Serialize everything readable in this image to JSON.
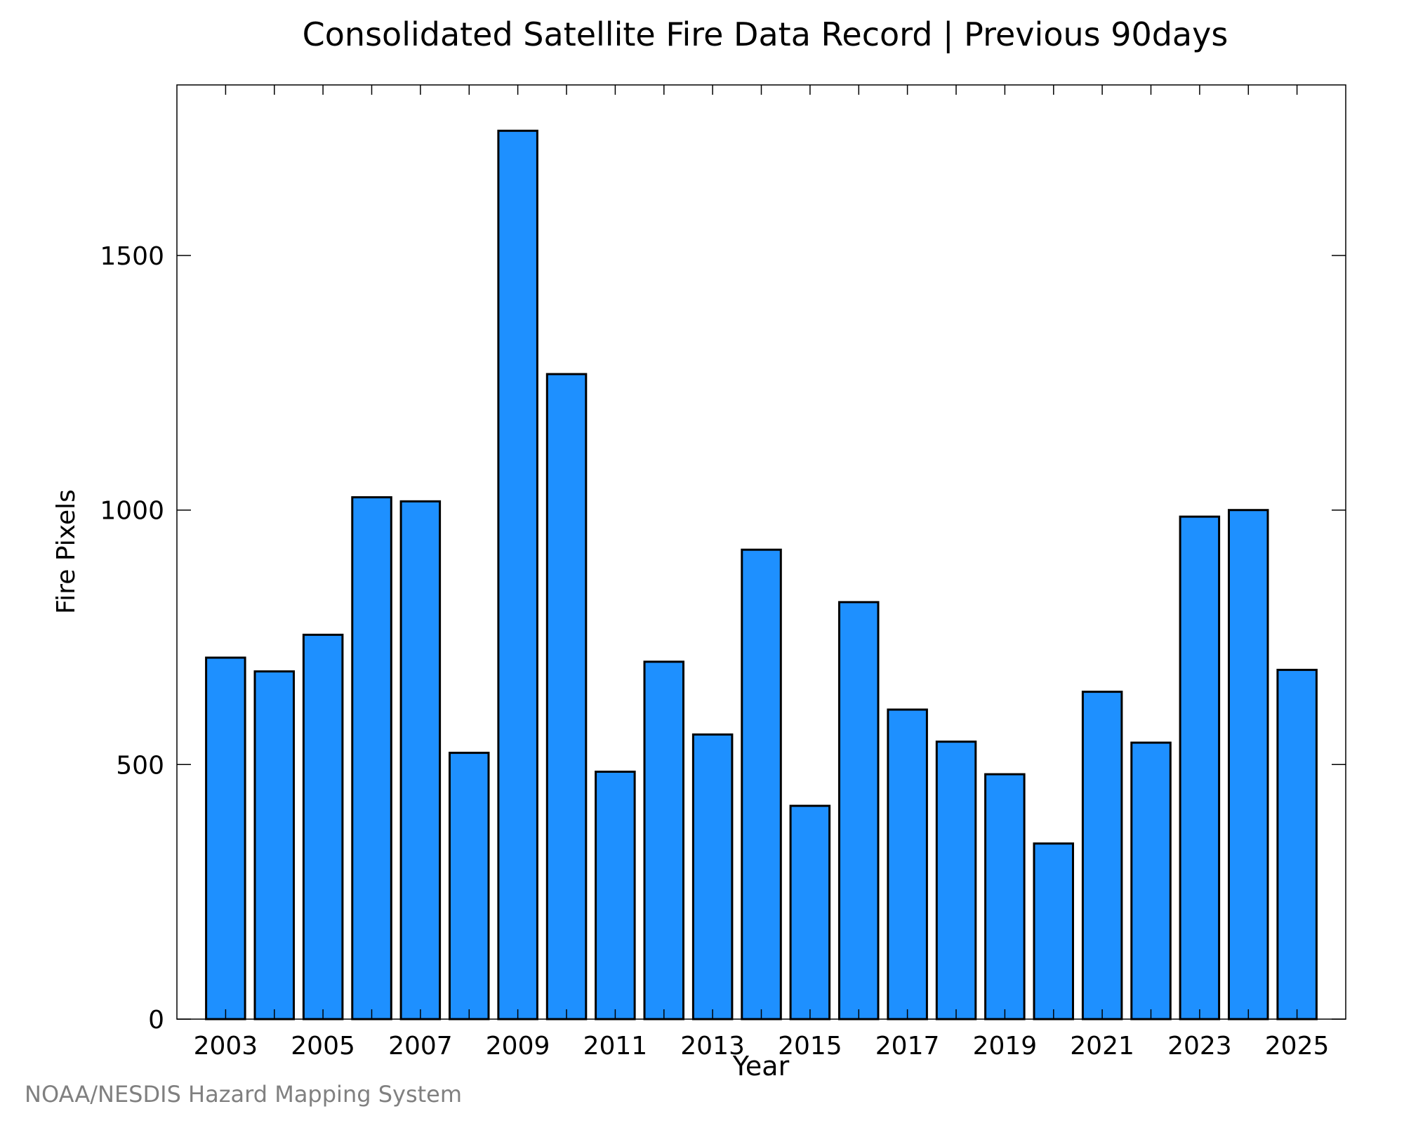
{
  "chart_data": {
    "type": "bar",
    "title": "Consolidated Satellite Fire Data Record | Previous 90days",
    "xlabel": "Year",
    "ylabel": "Fire Pixels",
    "categories": [
      "2003",
      "2004",
      "2005",
      "2006",
      "2007",
      "2008",
      "2009",
      "2010",
      "2011",
      "2012",
      "2013",
      "2014",
      "2015",
      "2016",
      "2017",
      "2018",
      "2019",
      "2020",
      "2021",
      "2022",
      "2023",
      "2024",
      "2025"
    ],
    "values": [
      710,
      683,
      755,
      1025,
      1017,
      523,
      1745,
      1267,
      486,
      702,
      559,
      922,
      419,
      819,
      608,
      545,
      481,
      345,
      643,
      543,
      987,
      1000,
      686
    ],
    "xtick_labels": [
      "2003",
      "2005",
      "2007",
      "2009",
      "2011",
      "2013",
      "2015",
      "2017",
      "2019",
      "2021",
      "2023",
      "2025"
    ],
    "yticks": [
      0,
      500,
      1000,
      1500
    ],
    "ylim": [
      0,
      1835
    ],
    "grid": false,
    "bar_color": "#1E90FF",
    "edge_color": "#000000"
  },
  "footer": {
    "credit": "NOAA/NESDIS Hazard Mapping System"
  }
}
